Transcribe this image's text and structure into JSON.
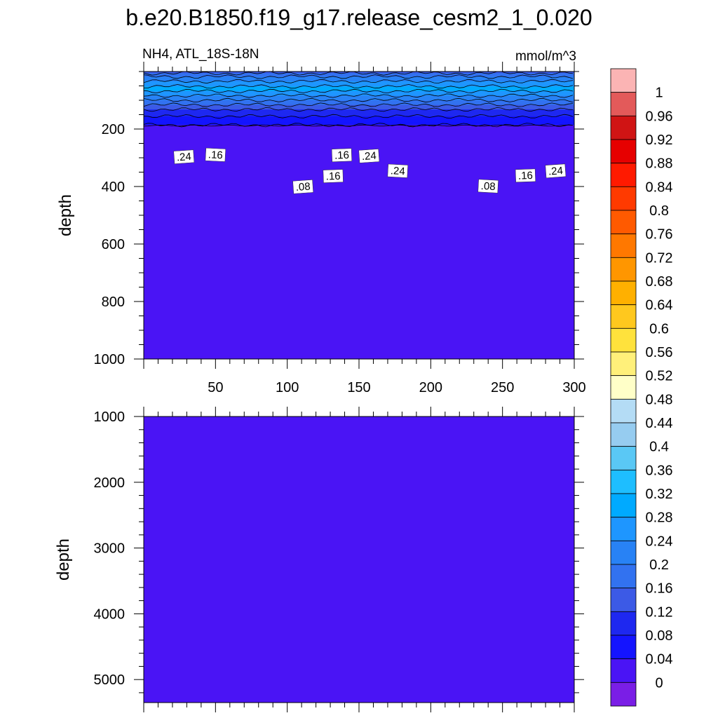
{
  "title": "b.e20.B1850.f19_g17.release_cesm2_1_0.020",
  "subtitle_left": "NH4, ATL_18S-18N",
  "subtitle_right": "mmol/m^3",
  "colors": {
    "background_field": "#4a14f5",
    "contour_line": "#000000"
  },
  "chart_data": [
    {
      "type": "heatmap",
      "panel": "upper",
      "xlim": [
        0,
        300
      ],
      "ylim": [
        1000,
        0
      ],
      "x_ticks": [
        50,
        100,
        150,
        200,
        250,
        300
      ],
      "y_ticks": [
        200,
        400,
        600,
        800,
        1000
      ],
      "ylabel": "depth",
      "contour_labels": [
        {
          "text": ".24",
          "x": 28,
          "y": 48
        },
        {
          "text": ".16",
          "x": 50,
          "y": 41
        },
        {
          "text": ".16",
          "x": 138,
          "y": 42
        },
        {
          "text": ".24",
          "x": 157,
          "y": 45
        },
        {
          "text": ".24",
          "x": 177,
          "y": 97
        },
        {
          "text": ".16",
          "x": 132,
          "y": 115
        },
        {
          "text": ".08",
          "x": 111,
          "y": 152
        },
        {
          "text": ".08",
          "x": 240,
          "y": 150
        },
        {
          "text": ".16",
          "x": 266,
          "y": 113
        },
        {
          "text": ".24",
          "x": 287,
          "y": 97
        }
      ],
      "depth_profile": [
        {
          "depth": 0,
          "value": 0.14
        },
        {
          "depth": 25,
          "value": 0.22
        },
        {
          "depth": 60,
          "value": 0.3
        },
        {
          "depth": 100,
          "value": 0.2
        },
        {
          "depth": 140,
          "value": 0.1
        },
        {
          "depth": 185,
          "value": 0.04
        },
        {
          "depth": 1000,
          "value": 0.02
        }
      ]
    },
    {
      "type": "heatmap",
      "panel": "lower",
      "xlim": [
        0,
        300
      ],
      "ylim": [
        5350,
        1000
      ],
      "y_ticks": [
        1000,
        2000,
        3000,
        4000,
        5000
      ],
      "ylabel": "depth",
      "value": 0.02
    }
  ],
  "colorbar": {
    "labels": [
      "1",
      "0.96",
      "0.92",
      "0.88",
      "0.84",
      "0.8",
      "0.76",
      "0.72",
      "0.68",
      "0.64",
      "0.6",
      "0.56",
      "0.52",
      "0.48",
      "0.44",
      "0.4",
      "0.36",
      "0.32",
      "0.28",
      "0.24",
      "0.2",
      "0.16",
      "0.12",
      "0.08",
      "0.04",
      "0"
    ],
    "colors_top_to_bottom": [
      "#fbb4b4",
      "#e35a5a",
      "#d01414",
      "#e60000",
      "#ff1a00",
      "#ff3a00",
      "#ff5a00",
      "#ff7800",
      "#ff9600",
      "#ffb000",
      "#ffc81e",
      "#ffe23c",
      "#fff07a",
      "#ffffc8",
      "#b4dcf5",
      "#96ccf0",
      "#5ac8f5",
      "#1ebeff",
      "#00aaff",
      "#1e96ff",
      "#2882f5",
      "#3272f0",
      "#3c5ae6",
      "#1e28f0",
      "#1414ff",
      "#4a14f5",
      "#7a1ee6"
    ]
  }
}
